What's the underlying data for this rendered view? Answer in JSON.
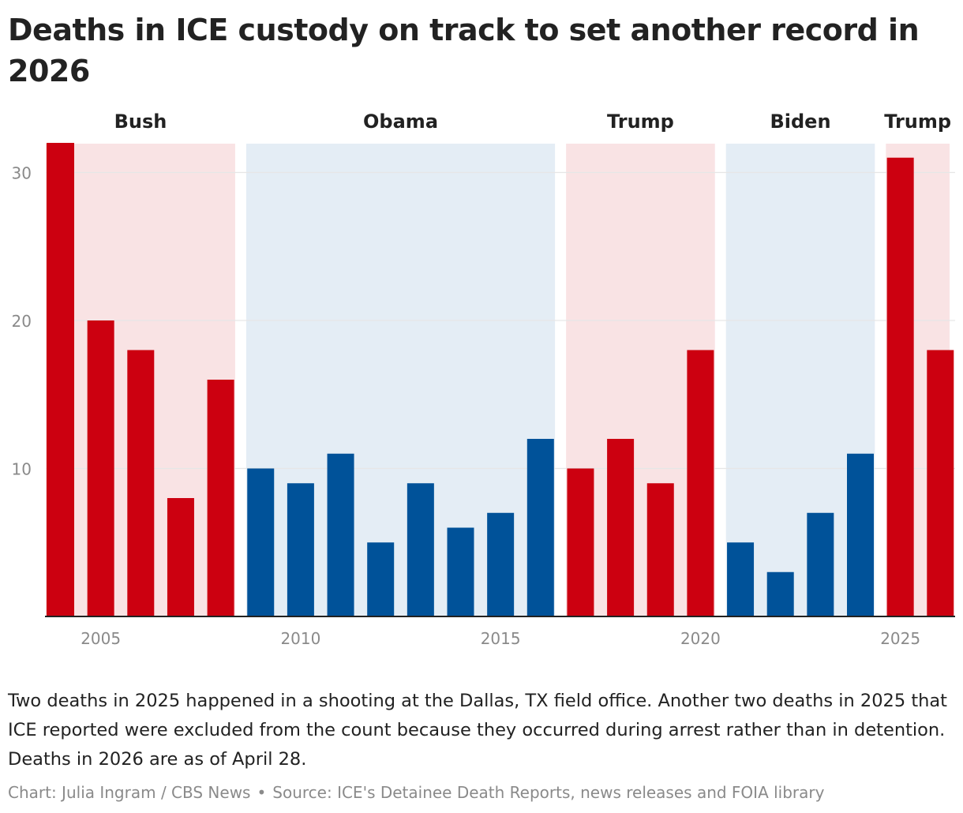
{
  "title": "Deaths in ICE custody on track to set another record in 2026",
  "note": "Two deaths in 2025 happened in a shooting at the Dallas, TX field office. Another two deaths in 2025 that ICE reported were excluded from the count because they occurred during arrest rather than in detention. Deaths in 2026 are as of April 28.",
  "credit": "Chart: Julia Ingram / CBS News",
  "credit_sep": "•",
  "source": "Source: ICE's Detainee Death Reports, news releases and FOIA library",
  "colors": {
    "republican_bar": "#cc0010",
    "democrat_bar": "#005299",
    "republican_band": "#f9e3e4",
    "democrat_band": "#e4edf5",
    "gridline": "#e6e6e6",
    "axis": "#222222",
    "tick_label": "#8a8a8a"
  },
  "chart_data": {
    "type": "bar",
    "title": "Deaths in ICE custody on track to set another record in 2026",
    "xlabel": "",
    "ylabel": "",
    "ylim": [
      0,
      32
    ],
    "yticks": [
      10,
      20,
      30
    ],
    "xticks": [
      2005,
      2010,
      2015,
      2020,
      2025
    ],
    "grid": true,
    "categories": [
      2004,
      2005,
      2006,
      2007,
      2008,
      2009,
      2010,
      2011,
      2012,
      2013,
      2014,
      2015,
      2016,
      2017,
      2018,
      2019,
      2020,
      2021,
      2022,
      2023,
      2024,
      2025,
      2026
    ],
    "values": [
      32,
      20,
      18,
      8,
      16,
      10,
      9,
      11,
      5,
      9,
      6,
      7,
      12,
      10,
      12,
      9,
      18,
      5,
      3,
      7,
      11,
      31,
      18
    ],
    "administrations": [
      {
        "name": "Bush",
        "party": "republican",
        "start": 2004,
        "end": 2008
      },
      {
        "name": "Obama",
        "party": "democrat",
        "start": 2009,
        "end": 2016
      },
      {
        "name": "Trump",
        "party": "republican",
        "start": 2017,
        "end": 2020
      },
      {
        "name": "Biden",
        "party": "democrat",
        "start": 2021,
        "end": 2024
      },
      {
        "name": "Trump",
        "party": "republican",
        "start": 2025,
        "end": 2026
      }
    ]
  }
}
